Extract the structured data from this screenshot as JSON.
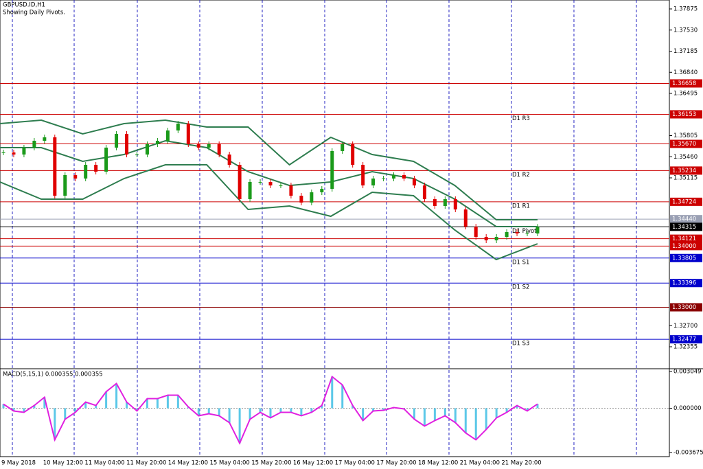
{
  "chart_data": [
    {
      "type": "candlestick",
      "title": "GBPUSD.ID,H1",
      "subtitle": "Showing Daily Pivots.",
      "x_labels": [
        "9 May 2018",
        "10 May 12:00",
        "11 May 04:00",
        "11 May 20:00",
        "14 May 12:00",
        "15 May 04:00",
        "15 May 20:00",
        "16 May 12:00",
        "17 May 04:00",
        "17 May 20:00",
        "18 May 12:00",
        "21 May 04:00",
        "21 May 20:00"
      ],
      "close": [
        1.3553,
        1.35496,
        1.35609,
        1.35721,
        1.35777,
        1.34823,
        1.3516,
        1.35104,
        1.35328,
        1.35216,
        1.35609,
        1.35833,
        1.35496,
        1.35496,
        1.35665,
        1.35721,
        1.35889,
        1.36001,
        1.35665,
        1.35609,
        1.35665,
        1.35496,
        1.35328,
        1.34767,
        1.35048,
        1.35048,
        1.34991,
        1.34991,
        1.34823,
        1.34711,
        1.34879,
        1.34935,
        1.35553,
        1.35665,
        1.35328,
        1.34991,
        1.35104,
        1.35104,
        1.3516,
        1.35104,
        1.34991,
        1.34767,
        1.34655,
        1.34767,
        1.34599,
        1.34318,
        1.3415,
        1.34094,
        1.3415,
        1.34229,
        1.34206,
        1.34206,
        1.34315
      ],
      "color_up": "#1a9a1a",
      "color_down": "#e00000",
      "bands": [
        {
          "color": "#2e7d4f",
          "values": [
            1.36001,
            1.36057,
            1.35833,
            1.36001,
            1.36057,
            1.35945,
            1.35945,
            1.35328,
            1.35777,
            1.35496,
            1.35384,
            1.34991,
            1.34431,
            1.34431
          ]
        },
        {
          "color": "#2e7d4f",
          "values": [
            1.35609,
            1.35609,
            1.35384,
            1.35496,
            1.35721,
            1.35609,
            1.35216,
            1.34991,
            1.35048,
            1.35216,
            1.35104,
            1.34767,
            1.34318,
            1.34318
          ]
        },
        {
          "color": "#2e7d4f",
          "values": [
            1.35048,
            1.34767,
            1.34767,
            1.35104,
            1.35328,
            1.35328,
            1.34599,
            1.34655,
            1.34487,
            1.34879,
            1.34823,
            1.34262,
            1.3378,
            1.34038
          ]
        }
      ],
      "ylim": [
        1.31996,
        1.38021
      ],
      "yticks": [
        {
          "value": 1.37875,
          "label": "1.37875"
        },
        {
          "value": 1.3753,
          "label": "1.37530"
        },
        {
          "value": 1.37185,
          "label": "1.37185"
        },
        {
          "value": 1.3684,
          "label": "1.36840"
        },
        {
          "value": 1.36495,
          "label": "1.36495"
        },
        {
          "value": 1.35805,
          "label": "1.35805"
        },
        {
          "value": 1.3546,
          "label": "1.35460"
        },
        {
          "value": 1.35115,
          "label": "1.35115"
        },
        {
          "value": 1.327,
          "label": "1.32700"
        },
        {
          "value": 1.32355,
          "label": "1.32355"
        }
      ],
      "levels": [
        {
          "value": 1.36658,
          "label": "1.36658",
          "color": "#cc0000"
        },
        {
          "value": 1.36153,
          "label": "1.36153",
          "color": "#cc0000",
          "name": "D1 R3"
        },
        {
          "value": 1.3567,
          "label": "1.35670",
          "color": "#cc0000"
        },
        {
          "value": 1.35234,
          "label": "1.35234",
          "color": "#cc0000",
          "name": "D1 R2"
        },
        {
          "value": 1.34724,
          "label": "1.34724",
          "color": "#cc0000",
          "name": "D1 R1"
        },
        {
          "value": 1.3444,
          "label": "1.34440",
          "color": "#9aa0b4"
        },
        {
          "value": 1.34315,
          "label": "1.34315",
          "color": "#000000",
          "name": "D1 Pivot"
        },
        {
          "value": 1.34121,
          "label": "1.34121",
          "color": "#cc0000"
        },
        {
          "value": 1.34,
          "label": "1.34000",
          "color": "#cc0000"
        },
        {
          "value": 1.33805,
          "label": "1.33805",
          "color": "#0000cc",
          "name": "D1 S1"
        },
        {
          "value": 1.33396,
          "label": "1.33396",
          "color": "#0000cc",
          "name": "D1 S2"
        },
        {
          "value": 1.33,
          "label": "1.33000",
          "color": "#8b0000"
        },
        {
          "value": 1.32477,
          "label": "1.32477",
          "color": "#0000cc",
          "name": "D1 S3"
        }
      ]
    },
    {
      "type": "bar",
      "title": "MACD(5,15,1) 0.000355 0.000355",
      "color": "#5bc8e8",
      "line_color": "#e020e0",
      "values": [
        0.000342,
        -0.000228,
        -0.000342,
        0.000228,
        0.000912,
        -0.002621,
        -0.000912,
        -0.000342,
        0.000513,
        0.000228,
        0.001368,
        0.002051,
        0.000513,
        -0.000228,
        0.000798,
        0.000798,
        0.001083,
        0.001083,
        0.000114,
        -0.000627,
        -0.000456,
        -0.000627,
        -0.001197,
        -0.002906,
        -0.000912,
        -0.000342,
        -0.000798,
        -0.000342,
        -0.000342,
        -0.000627,
        -0.000342,
        0.000228,
        0.002621,
        0.001937,
        0.000228,
        -0.001026,
        -0.000228,
        -0.000171,
        5.7e-05,
        -5.7e-05,
        -0.000912,
        -0.001482,
        -0.001026,
        -0.000627,
        -0.001197,
        -0.002051,
        -0.002621,
        -0.001767,
        -0.000798,
        -0.000342,
        0.000228,
        -0.000228,
        0.000355
      ],
      "ylim": [
        -0.004017,
        0.003277
      ],
      "yticks": [
        {
          "value": 0.003049,
          "label": "0.003049"
        },
        {
          "value": 0,
          "label": "0.000000"
        },
        {
          "value": -0.003675,
          "label": "-0.003675"
        }
      ]
    }
  ]
}
